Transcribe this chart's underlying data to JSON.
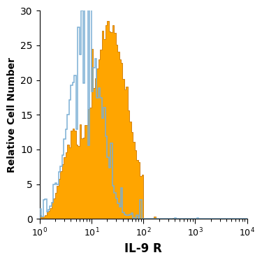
{
  "xlabel": "IL-9 R",
  "ylabel": "Relative Cell Number",
  "xlim_log": [
    1,
    10000
  ],
  "ylim": [
    0,
    30
  ],
  "yticks": [
    0,
    5,
    10,
    15,
    20,
    25,
    30
  ],
  "blue_color": "#7BAFD4",
  "orange_color": "#FFA500",
  "orange_edge_color": "#CC7700",
  "blue_peak_log": 0.88,
  "blue_sigma": 0.28,
  "blue_peak_y": 30.0,
  "orange_peak_log": 1.35,
  "orange_sigma": 0.35,
  "orange_peak_y": 27.0,
  "n_bins": 120,
  "noise_seed": 17
}
